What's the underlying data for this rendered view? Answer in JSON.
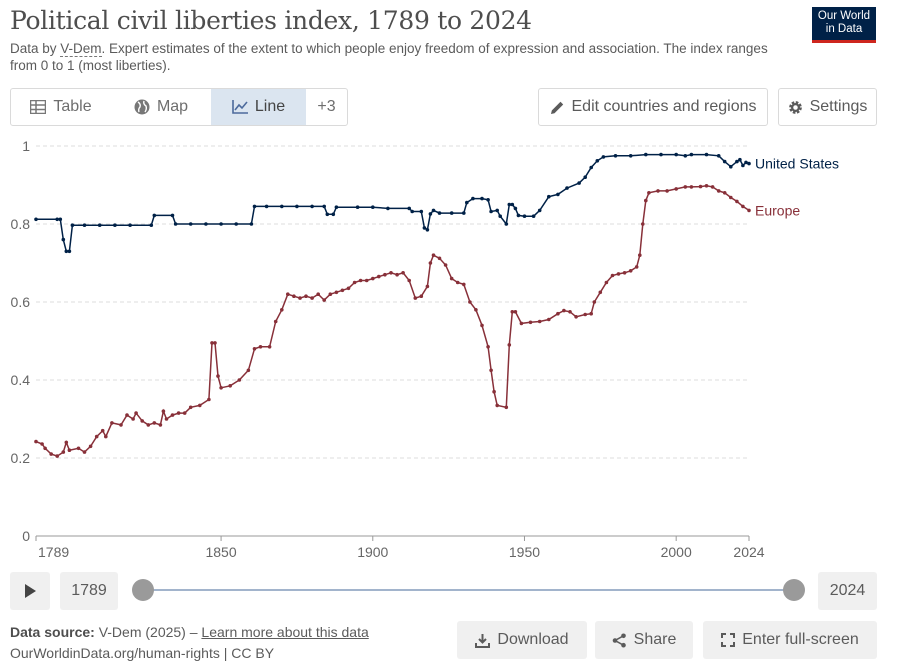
{
  "header": {
    "title": "Political civil liberties index, 1789 to 2024",
    "subtitle_prefix": "Data by ",
    "subtitle_link": "V-Dem",
    "subtitle_rest": ". Expert estimates of the extent to which people enjoy freedom of expression and association. The index ranges from 0 to 1 (most liberties).",
    "logo_line1": "Our World",
    "logo_line2": "in Data"
  },
  "tabs": [
    {
      "label": "Table",
      "icon": "table-icon"
    },
    {
      "label": "Map",
      "icon": "globe-icon"
    },
    {
      "label": "Line",
      "icon": "line-chart-icon",
      "active": true
    },
    {
      "label": "+3"
    }
  ],
  "actions": {
    "edit_label": "Edit countries and regions",
    "settings_label": "Settings"
  },
  "timeline": {
    "start_label": "1789",
    "end_label": "2024"
  },
  "footer": {
    "source_label": "Data source:",
    "source_text": "V-Dem (2025) – ",
    "learn_more": "Learn more about this data",
    "url_line": "OurWorldinData.org/human-rights | CC BY",
    "download_label": "Download",
    "share_label": "Share",
    "fullscreen_label": "Enter full-screen"
  },
  "chart_data": {
    "type": "line",
    "xlim": [
      1789,
      2024
    ],
    "ylim": [
      0,
      1
    ],
    "x_ticks": [
      "1789",
      "1850",
      "1900",
      "1950",
      "2000",
      "2024"
    ],
    "y_ticks": [
      "0",
      "0.2",
      "0.4",
      "0.6",
      "0.8",
      "1"
    ],
    "grid": true,
    "series": [
      {
        "name": "United States",
        "color": "#002147",
        "points": [
          [
            1789,
            0.812
          ],
          [
            1796,
            0.812
          ],
          [
            1797,
            0.812
          ],
          [
            1798,
            0.76
          ],
          [
            1799,
            0.73
          ],
          [
            1800,
            0.73
          ],
          [
            1801,
            0.797
          ],
          [
            1805,
            0.797
          ],
          [
            1810,
            0.797
          ],
          [
            1815,
            0.797
          ],
          [
            1820,
            0.797
          ],
          [
            1827,
            0.797
          ],
          [
            1828,
            0.822
          ],
          [
            1834,
            0.822
          ],
          [
            1835,
            0.8
          ],
          [
            1840,
            0.8
          ],
          [
            1845,
            0.8
          ],
          [
            1850,
            0.8
          ],
          [
            1855,
            0.8
          ],
          [
            1860,
            0.8
          ],
          [
            1861,
            0.845
          ],
          [
            1865,
            0.845
          ],
          [
            1870,
            0.845
          ],
          [
            1875,
            0.845
          ],
          [
            1880,
            0.845
          ],
          [
            1884,
            0.845
          ],
          [
            1885,
            0.825
          ],
          [
            1887,
            0.825
          ],
          [
            1888,
            0.843
          ],
          [
            1895,
            0.843
          ],
          [
            1900,
            0.843
          ],
          [
            1905,
            0.84
          ],
          [
            1912,
            0.84
          ],
          [
            1913,
            0.832
          ],
          [
            1916,
            0.832
          ],
          [
            1917,
            0.79
          ],
          [
            1918,
            0.785
          ],
          [
            1919,
            0.826
          ],
          [
            1920,
            0.835
          ],
          [
            1922,
            0.828
          ],
          [
            1926,
            0.828
          ],
          [
            1930,
            0.828
          ],
          [
            1931,
            0.855
          ],
          [
            1933,
            0.865
          ],
          [
            1936,
            0.865
          ],
          [
            1938,
            0.862
          ],
          [
            1939,
            0.832
          ],
          [
            1941,
            0.835
          ],
          [
            1942,
            0.82
          ],
          [
            1944,
            0.8
          ],
          [
            1945,
            0.85
          ],
          [
            1946,
            0.85
          ],
          [
            1947,
            0.84
          ],
          [
            1948,
            0.822
          ],
          [
            1950,
            0.82
          ],
          [
            1953,
            0.82
          ],
          [
            1955,
            0.835
          ],
          [
            1958,
            0.87
          ],
          [
            1961,
            0.876
          ],
          [
            1964,
            0.892
          ],
          [
            1968,
            0.905
          ],
          [
            1970,
            0.92
          ],
          [
            1972,
            0.945
          ],
          [
            1974,
            0.962
          ],
          [
            1976,
            0.972
          ],
          [
            1980,
            0.975
          ],
          [
            1985,
            0.975
          ],
          [
            1990,
            0.978
          ],
          [
            1995,
            0.978
          ],
          [
            2000,
            0.978
          ],
          [
            2003,
            0.975
          ],
          [
            2005,
            0.978
          ],
          [
            2010,
            0.978
          ],
          [
            2014,
            0.975
          ],
          [
            2016,
            0.96
          ],
          [
            2018,
            0.947
          ],
          [
            2020,
            0.96
          ],
          [
            2021,
            0.965
          ],
          [
            2022,
            0.95
          ],
          [
            2023,
            0.958
          ],
          [
            2024,
            0.955
          ]
        ]
      },
      {
        "name": "Europe",
        "color": "#883039",
        "points": [
          [
            1789,
            0.242
          ],
          [
            1791,
            0.236
          ],
          [
            1792,
            0.225
          ],
          [
            1794,
            0.21
          ],
          [
            1796,
            0.205
          ],
          [
            1798,
            0.215
          ],
          [
            1799,
            0.24
          ],
          [
            1800,
            0.22
          ],
          [
            1803,
            0.225
          ],
          [
            1805,
            0.215
          ],
          [
            1807,
            0.23
          ],
          [
            1809,
            0.255
          ],
          [
            1811,
            0.27
          ],
          [
            1812,
            0.255
          ],
          [
            1814,
            0.29
          ],
          [
            1817,
            0.285
          ],
          [
            1819,
            0.31
          ],
          [
            1821,
            0.3
          ],
          [
            1822,
            0.315
          ],
          [
            1824,
            0.295
          ],
          [
            1826,
            0.285
          ],
          [
            1828,
            0.29
          ],
          [
            1830,
            0.285
          ],
          [
            1831,
            0.32
          ],
          [
            1832,
            0.3
          ],
          [
            1834,
            0.31
          ],
          [
            1836,
            0.315
          ],
          [
            1838,
            0.315
          ],
          [
            1840,
            0.33
          ],
          [
            1843,
            0.335
          ],
          [
            1846,
            0.35
          ],
          [
            1847,
            0.495
          ],
          [
            1848,
            0.495
          ],
          [
            1849,
            0.41
          ],
          [
            1850,
            0.38
          ],
          [
            1853,
            0.385
          ],
          [
            1856,
            0.4
          ],
          [
            1859,
            0.425
          ],
          [
            1861,
            0.48
          ],
          [
            1863,
            0.485
          ],
          [
            1866,
            0.485
          ],
          [
            1868,
            0.55
          ],
          [
            1870,
            0.58
          ],
          [
            1872,
            0.62
          ],
          [
            1874,
            0.615
          ],
          [
            1876,
            0.61
          ],
          [
            1878,
            0.615
          ],
          [
            1880,
            0.61
          ],
          [
            1882,
            0.62
          ],
          [
            1884,
            0.605
          ],
          [
            1886,
            0.62
          ],
          [
            1888,
            0.625
          ],
          [
            1890,
            0.63
          ],
          [
            1892,
            0.635
          ],
          [
            1894,
            0.65
          ],
          [
            1896,
            0.655
          ],
          [
            1898,
            0.655
          ],
          [
            1900,
            0.66
          ],
          [
            1902,
            0.665
          ],
          [
            1904,
            0.67
          ],
          [
            1906,
            0.675
          ],
          [
            1908,
            0.67
          ],
          [
            1910,
            0.675
          ],
          [
            1912,
            0.655
          ],
          [
            1914,
            0.61
          ],
          [
            1916,
            0.615
          ],
          [
            1918,
            0.64
          ],
          [
            1919,
            0.7
          ],
          [
            1920,
            0.72
          ],
          [
            1922,
            0.712
          ],
          [
            1924,
            0.695
          ],
          [
            1926,
            0.66
          ],
          [
            1928,
            0.65
          ],
          [
            1930,
            0.645
          ],
          [
            1932,
            0.6
          ],
          [
            1934,
            0.58
          ],
          [
            1936,
            0.54
          ],
          [
            1938,
            0.485
          ],
          [
            1939,
            0.425
          ],
          [
            1940,
            0.37
          ],
          [
            1941,
            0.335
          ],
          [
            1944,
            0.33
          ],
          [
            1945,
            0.49
          ],
          [
            1946,
            0.575
          ],
          [
            1947,
            0.575
          ],
          [
            1949,
            0.545
          ],
          [
            1952,
            0.548
          ],
          [
            1955,
            0.55
          ],
          [
            1958,
            0.555
          ],
          [
            1961,
            0.57
          ],
          [
            1963,
            0.578
          ],
          [
            1965,
            0.575
          ],
          [
            1967,
            0.562
          ],
          [
            1970,
            0.568
          ],
          [
            1972,
            0.57
          ],
          [
            1973,
            0.6
          ],
          [
            1975,
            0.625
          ],
          [
            1977,
            0.65
          ],
          [
            1979,
            0.668
          ],
          [
            1981,
            0.672
          ],
          [
            1983,
            0.675
          ],
          [
            1985,
            0.68
          ],
          [
            1987,
            0.69
          ],
          [
            1988,
            0.72
          ],
          [
            1989,
            0.8
          ],
          [
            1990,
            0.86
          ],
          [
            1991,
            0.88
          ],
          [
            1994,
            0.885
          ],
          [
            1997,
            0.885
          ],
          [
            2000,
            0.89
          ],
          [
            2003,
            0.895
          ],
          [
            2005,
            0.895
          ],
          [
            2008,
            0.896
          ],
          [
            2010,
            0.898
          ],
          [
            2012,
            0.895
          ],
          [
            2014,
            0.885
          ],
          [
            2016,
            0.88
          ],
          [
            2018,
            0.868
          ],
          [
            2020,
            0.858
          ],
          [
            2022,
            0.845
          ],
          [
            2024,
            0.835
          ]
        ]
      }
    ]
  }
}
